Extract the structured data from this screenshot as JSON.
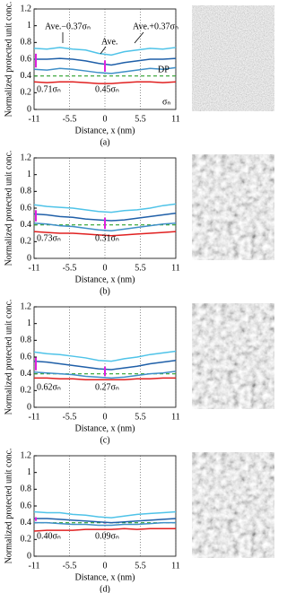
{
  "chart_data": [
    {
      "type": "line",
      "caption": "(a)",
      "xlabel": "Distance, x (nm)",
      "ylabel": "Normalized protected unit conc.",
      "xlim": [
        -11,
        11
      ],
      "xticks": [
        -11,
        -5.5,
        0,
        5.5,
        11
      ],
      "ylim": [
        0,
        1.2
      ],
      "yticks": [
        0,
        0.2,
        0.4,
        0.6,
        0.8,
        1,
        1.2
      ],
      "dp_value": 0.4,
      "dp_color": "#2ca02c",
      "x": [
        -11,
        -9,
        -7,
        -5,
        -3,
        -1,
        1,
        3,
        5,
        7,
        9,
        11
      ],
      "series": [
        {
          "color": "#4fc3e8",
          "values": [
            0.73,
            0.72,
            0.74,
            0.72,
            0.71,
            0.67,
            0.65,
            0.69,
            0.71,
            0.73,
            0.72,
            0.74
          ]
        },
        {
          "color": "#1f5fa8",
          "values": [
            0.6,
            0.6,
            0.61,
            0.6,
            0.58,
            0.55,
            0.53,
            0.56,
            0.58,
            0.6,
            0.6,
            0.61
          ]
        },
        {
          "color": "#3f8fc8",
          "values": [
            0.48,
            0.47,
            0.49,
            0.48,
            0.46,
            0.44,
            0.43,
            0.45,
            0.47,
            0.49,
            0.48,
            0.5
          ]
        },
        {
          "color": "#e02020",
          "values": [
            0.33,
            0.32,
            0.33,
            0.33,
            0.32,
            0.31,
            0.31,
            0.32,
            0.33,
            0.33,
            0.32,
            0.33
          ]
        }
      ],
      "annotations": [
        "Ave.−0.37σₙ",
        "Ave.+0.37σₙ",
        "Ave.",
        "DP",
        "σₙ"
      ],
      "sigma_labels": [
        "0.71σₙ",
        "0.45σₙ"
      ]
    },
    {
      "type": "line",
      "caption": "(b)",
      "xlabel": "Distance, x (nm)",
      "ylabel": "Normalized protected unit conc.",
      "xlim": [
        -11,
        11
      ],
      "xticks": [
        -11,
        -5.5,
        0,
        5.5,
        11
      ],
      "ylim": [
        0,
        1.2
      ],
      "yticks": [
        0,
        0.2,
        0.4,
        0.6,
        0.8,
        1,
        1.2
      ],
      "dp_value": 0.4,
      "dp_color": "#2ca02c",
      "x": [
        -11,
        -9,
        -7,
        -5,
        -3,
        -1,
        1,
        3,
        5,
        7,
        9,
        11
      ],
      "series": [
        {
          "color": "#4fc3e8",
          "values": [
            0.64,
            0.62,
            0.61,
            0.6,
            0.58,
            0.56,
            0.55,
            0.57,
            0.58,
            0.6,
            0.63,
            0.65
          ]
        },
        {
          "color": "#1f5fa8",
          "values": [
            0.53,
            0.52,
            0.5,
            0.49,
            0.47,
            0.46,
            0.45,
            0.46,
            0.48,
            0.5,
            0.52,
            0.54
          ]
        },
        {
          "color": "#3f8fc8",
          "values": [
            0.42,
            0.41,
            0.39,
            0.38,
            0.36,
            0.34,
            0.33,
            0.35,
            0.37,
            0.39,
            0.41,
            0.42
          ]
        },
        {
          "color": "#e02020",
          "values": [
            0.32,
            0.31,
            0.3,
            0.3,
            0.29,
            0.28,
            0.27,
            0.28,
            0.29,
            0.3,
            0.31,
            0.32
          ]
        }
      ],
      "sigma_labels": [
        "0.73σₙ",
        "0.31σₙ"
      ]
    },
    {
      "type": "line",
      "caption": "(c)",
      "xlabel": "Distance, x (nm)",
      "ylabel": "Normalized protected unit conc.",
      "xlim": [
        -11,
        11
      ],
      "xticks": [
        -11,
        -5.5,
        0,
        5.5,
        11
      ],
      "ylim": [
        0,
        1.2
      ],
      "yticks": [
        0,
        0.2,
        0.4,
        0.6,
        0.8,
        1,
        1.2
      ],
      "dp_value": 0.4,
      "dp_color": "#2ca02c",
      "x": [
        -11,
        -9,
        -7,
        -5,
        -3,
        -1,
        1,
        3,
        5,
        7,
        9,
        11
      ],
      "series": [
        {
          "color": "#4fc3e8",
          "values": [
            0.66,
            0.64,
            0.63,
            0.61,
            0.59,
            0.56,
            0.55,
            0.58,
            0.6,
            0.63,
            0.65,
            0.67
          ]
        },
        {
          "color": "#1f5fa8",
          "values": [
            0.55,
            0.54,
            0.52,
            0.5,
            0.48,
            0.46,
            0.45,
            0.47,
            0.49,
            0.52,
            0.54,
            0.56
          ]
        },
        {
          "color": "#3f8fc8",
          "values": [
            0.42,
            0.41,
            0.4,
            0.39,
            0.37,
            0.36,
            0.35,
            0.36,
            0.38,
            0.4,
            0.41,
            0.43
          ]
        },
        {
          "color": "#e02020",
          "values": [
            0.35,
            0.35,
            0.34,
            0.34,
            0.33,
            0.33,
            0.33,
            0.33,
            0.34,
            0.34,
            0.35,
            0.35
          ]
        }
      ],
      "sigma_labels": [
        "0.62σₙ",
        "0.27σₙ"
      ]
    },
    {
      "type": "line",
      "caption": "(d)",
      "xlabel": "Distance, x (nm)",
      "ylabel": "Normalized protected unit conc.",
      "xlim": [
        -11,
        11
      ],
      "xticks": [
        -11,
        -5.5,
        0,
        5.5,
        11
      ],
      "ylim": [
        0,
        1.2
      ],
      "yticks": [
        0,
        0.2,
        0.4,
        0.6,
        0.8,
        1,
        1.2
      ],
      "dp_value": 0.4,
      "dp_color": "#2ca02c",
      "x": [
        -11,
        -9,
        -7,
        -5,
        -3,
        -1,
        1,
        3,
        5,
        7,
        9,
        11
      ],
      "series": [
        {
          "color": "#4fc3e8",
          "values": [
            0.53,
            0.52,
            0.52,
            0.5,
            0.49,
            0.47,
            0.46,
            0.48,
            0.5,
            0.51,
            0.52,
            0.53
          ]
        },
        {
          "color": "#1f5fa8",
          "values": [
            0.45,
            0.45,
            0.44,
            0.43,
            0.42,
            0.41,
            0.4,
            0.41,
            0.42,
            0.43,
            0.44,
            0.45
          ]
        },
        {
          "color": "#3f8fc8",
          "values": [
            0.4,
            0.4,
            0.39,
            0.38,
            0.38,
            0.37,
            0.37,
            0.38,
            0.38,
            0.39,
            0.4,
            0.4
          ]
        },
        {
          "color": "#e02020",
          "values": [
            0.3,
            0.31,
            0.31,
            0.31,
            0.32,
            0.32,
            0.32,
            0.33,
            0.32,
            0.33,
            0.33,
            0.33
          ]
        }
      ],
      "sigma_labels": [
        "0.40σₙ",
        "0.09σₙ"
      ]
    }
  ]
}
